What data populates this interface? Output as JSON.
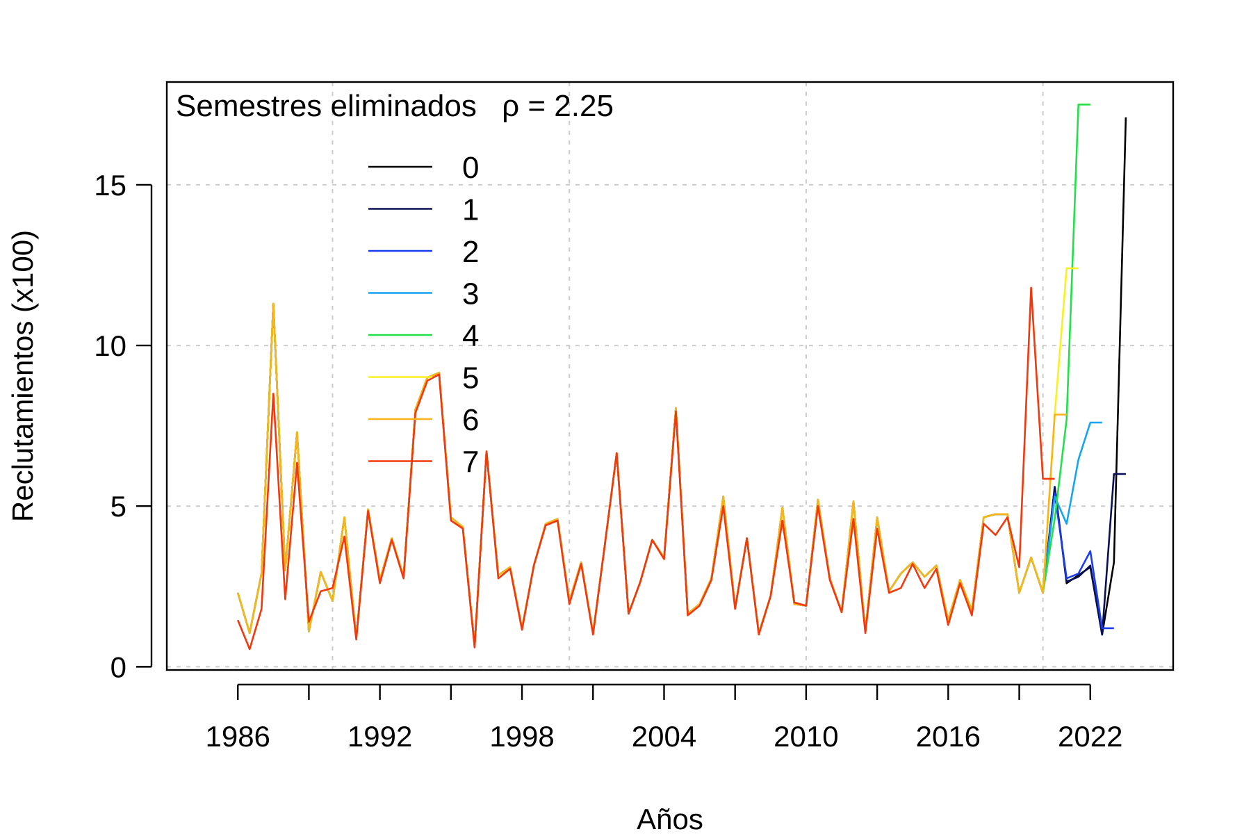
{
  "chart_data": {
    "type": "line",
    "subtitle": "Semestres eliminados",
    "rho_symbol": "ρ",
    "rho_equals": " = ",
    "rho_value": "2.25",
    "xlabel": "Años",
    "ylabel": "Reclutamientos (x100)",
    "xlim": [
      1983,
      2025.5
    ],
    "ylim": [
      -0.1,
      18.2
    ],
    "x_ticks": [
      1986,
      1989,
      1992,
      1995,
      1998,
      2001,
      2004,
      2007,
      2010,
      2013,
      2016,
      2019,
      2022
    ],
    "x_tick_labels": [
      "1986",
      "",
      "1992",
      "",
      "1998",
      "",
      "2004",
      "",
      "2010",
      "",
      "2016",
      "",
      "2022"
    ],
    "x_grid": [
      1990,
      2000,
      2010,
      2020
    ],
    "y_ticks": [
      0,
      5,
      10,
      15
    ],
    "y_tick_labels": [
      "0",
      "5",
      "10",
      "15"
    ],
    "grid": true,
    "legend_position": "top-left",
    "common_x": [
      1986,
      1986.5,
      1987,
      1987.5,
      1988,
      1988.5,
      1989,
      1989.5,
      1990,
      1990.5,
      1991,
      1991.5,
      1992,
      1992.5,
      1993,
      1993.5,
      1994,
      1994.5,
      1995,
      1995.5,
      1996,
      1996.5,
      1997,
      1997.5,
      1998,
      1998.5,
      1999,
      1999.5,
      2000,
      2000.5,
      2001,
      2001.5,
      2002,
      2002.5,
      2003,
      2003.5,
      2004,
      2004.5,
      2005,
      2005.5,
      2006,
      2006.5,
      2007,
      2007.5,
      2008,
      2008.5,
      2009,
      2009.5,
      2010,
      2010.5,
      2011,
      2011.5,
      2012,
      2012.5,
      2013,
      2013.5,
      2014,
      2014.5,
      2015,
      2015.5,
      2016,
      2016.5,
      2017,
      2017.5,
      2018,
      2018.5,
      2019,
      2019.5,
      2020
    ],
    "base_values": [
      2.3,
      1.05,
      2.9,
      11.3,
      3.0,
      7.3,
      1.1,
      2.95,
      2.05,
      4.65,
      0.9,
      4.9,
      2.7,
      4.0,
      2.8,
      8.0,
      9.0,
      9.15,
      4.65,
      4.35,
      0.65,
      6.7,
      2.85,
      3.1,
      1.2,
      3.15,
      4.45,
      4.6,
      2.05,
      3.25,
      1.05,
      3.8,
      6.65,
      1.65,
      2.65,
      3.95,
      3.4,
      8.05,
      1.65,
      1.95,
      2.75,
      5.3,
      1.85,
      4.0,
      1.05,
      2.2,
      4.95,
      1.95,
      1.9,
      5.2,
      2.75,
      1.7,
      5.15,
      1.1,
      4.65,
      2.35,
      2.9,
      3.25,
      2.8,
      3.15,
      1.45,
      2.7,
      1.75,
      4.65,
      4.75,
      4.75,
      2.3,
      3.4,
      2.3
    ],
    "series": [
      {
        "name": "0",
        "color": "#000000",
        "tail_x": [
          2020.5,
          2021,
          2021.5,
          2022,
          2022.5,
          2023,
          2023.5
        ],
        "tail_values": [
          5.6,
          2.6,
          2.85,
          3.1,
          1.0,
          3.25,
          17.1
        ]
      },
      {
        "name": "1",
        "color": "#0a1057",
        "tail_x": [
          2020.5,
          2021,
          2021.5,
          2022,
          2022.5,
          2023,
          2023.5
        ],
        "tail_values": [
          5.6,
          2.65,
          2.8,
          3.15,
          1.0,
          6.0,
          6.0
        ]
      },
      {
        "name": "2",
        "color": "#1a3cf0",
        "tail_x": [
          2020.5,
          2021,
          2021.5,
          2022,
          2022.5,
          2023
        ],
        "tail_values": [
          5.4,
          2.75,
          2.9,
          3.6,
          1.2,
          1.2
        ]
      },
      {
        "name": "3",
        "color": "#15a4f2",
        "tail_x": [
          2020.5,
          2021,
          2021.5,
          2022,
          2022.5
        ],
        "tail_values": [
          5.3,
          4.45,
          6.45,
          7.6,
          7.6
        ]
      },
      {
        "name": "4",
        "color": "#22e04a",
        "tail_x": [
          2020.5,
          2021,
          2021.5,
          2022
        ],
        "tail_values": [
          4.6,
          7.7,
          17.5,
          17.5
        ]
      },
      {
        "name": "5",
        "color": "#f8f020",
        "tail_x": [
          2020.5,
          2021,
          2021.5
        ],
        "tail_values": [
          7.85,
          12.4,
          12.4
        ]
      },
      {
        "name": "6",
        "color": "#f8b418",
        "tail_x": [
          2020.5,
          2021
        ],
        "tail_values": [
          7.85,
          7.85
        ]
      },
      {
        "name": "7",
        "color": "#f2380d",
        "x": [
          1986,
          1986.5,
          1987,
          1987.5,
          1988,
          1988.5,
          1989,
          1989.5,
          1990,
          1990.5,
          1991,
          1991.5,
          1992,
          1992.5,
          1993,
          1993.5,
          1994,
          1994.5,
          1995,
          1995.5,
          1996,
          1996.5,
          1997,
          1997.5,
          1998,
          1998.5,
          1999,
          1999.5,
          2000,
          2000.5,
          2001,
          2001.5,
          2002,
          2002.5,
          2003,
          2003.5,
          2004,
          2004.5,
          2005,
          2005.5,
          2006,
          2006.5,
          2007,
          2007.5,
          2008,
          2008.5,
          2009,
          2009.5,
          2010,
          2010.5,
          2011,
          2011.5,
          2012,
          2012.5,
          2013,
          2013.5,
          2014,
          2014.5,
          2015,
          2015.5,
          2016,
          2016.5,
          2017,
          2017.5,
          2018,
          2018.5,
          2019,
          2019.5,
          2020,
          2020.5
        ],
        "values": [
          1.45,
          0.55,
          1.8,
          8.5,
          2.1,
          6.35,
          1.4,
          2.35,
          2.45,
          4.05,
          0.85,
          4.85,
          2.6,
          3.95,
          2.75,
          7.9,
          8.9,
          9.1,
          4.55,
          4.3,
          0.6,
          6.7,
          2.75,
          3.05,
          1.15,
          3.15,
          4.4,
          4.55,
          1.95,
          3.2,
          1.0,
          3.8,
          6.65,
          1.65,
          2.65,
          3.95,
          3.35,
          7.95,
          1.6,
          1.9,
          2.7,
          5.0,
          1.8,
          4.0,
          1.0,
          2.2,
          4.55,
          2.0,
          1.9,
          5.0,
          2.7,
          1.7,
          4.6,
          1.05,
          4.3,
          2.3,
          2.45,
          3.2,
          2.45,
          3.05,
          1.3,
          2.6,
          1.6,
          4.45,
          4.1,
          4.65,
          3.1,
          11.8,
          5.85,
          5.85
        ]
      }
    ]
  }
}
